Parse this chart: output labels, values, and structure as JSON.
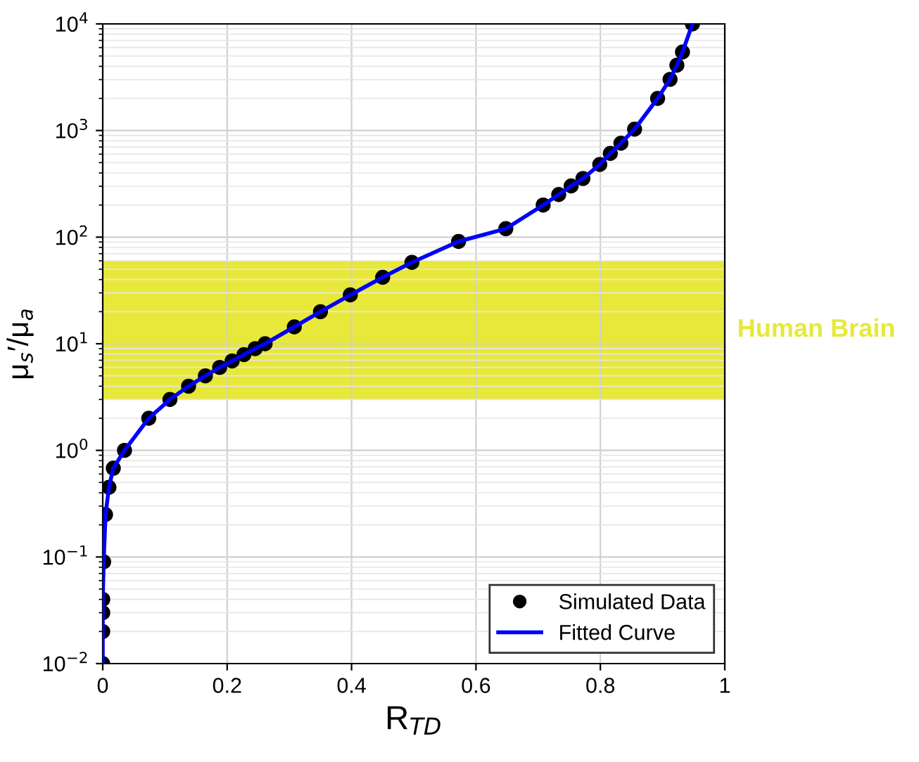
{
  "chart_data": {
    "type": "scatter",
    "xlabel": "R$_{TD}$",
    "ylabel": "μ$_{s}$′/μ$_{a}$",
    "log": "y",
    "grid": true,
    "legend": "bottom right",
    "xlim": [
      0,
      1
    ],
    "xticks": [
      0,
      0.2,
      0.4,
      0.6,
      0.8,
      1
    ],
    "ylim": [
      0.01,
      10000
    ],
    "yticks": [
      {
        "value": 0.01,
        "label": "10$^{−2}$"
      },
      {
        "value": 0.1,
        "label": "10$^{−1}$"
      },
      {
        "value": 1,
        "label": "10$^{0}$"
      },
      {
        "value": 10,
        "label": "10$^{1}$"
      },
      {
        "value": 100,
        "label": "10$^{2}$"
      },
      {
        "value": 1000,
        "label": "10$^{3}$"
      },
      {
        "value": 10000,
        "label": "10$^{4}$"
      }
    ],
    "bands": [
      {
        "axis": "y",
        "from": 3,
        "to": 60,
        "label": "Human Brain",
        "color": "#e8e83a"
      }
    ],
    "x": [
      0,
      0,
      0,
      0,
      0.0015,
      0.0045,
      0.01,
      0.017,
      0.035,
      0.074,
      0.108,
      0.138,
      0.165,
      0.188,
      0.208,
      0.227,
      0.245,
      0.261,
      0.308,
      0.35,
      0.398,
      0.45,
      0.497,
      0.572,
      0.648,
      0.708,
      0.733,
      0.753,
      0.772,
      0.799,
      0.816,
      0.833,
      0.855,
      0.892,
      0.912,
      0.923,
      0.932,
      0.948
    ],
    "series": [
      {
        "name": "Simulated Data",
        "marker": "circle",
        "color": "#000000",
        "values": [
          0.01,
          0.02,
          0.03,
          0.04,
          0.09,
          0.25,
          0.45,
          0.68,
          1.0,
          2.0,
          3.0,
          4.0,
          5.0,
          6.0,
          6.9,
          7.9,
          9.0,
          10,
          14.4,
          20,
          28.7,
          42,
          58,
          91,
          120,
          200,
          251,
          302,
          355,
          480,
          610,
          760,
          1030,
          2000,
          3020,
          4100,
          5450,
          10000
        ]
      },
      {
        "name": "Fitted Curve",
        "type": "line",
        "marker": "none",
        "line_style": "solid",
        "color": "#0000ff",
        "values": [
          0.01,
          0.02,
          0.03,
          0.04,
          0.09,
          0.25,
          0.45,
          0.68,
          1.0,
          2.0,
          3.0,
          4.0,
          5.0,
          6.0,
          6.9,
          7.9,
          9.0,
          10,
          14.4,
          20,
          28.7,
          42,
          58,
          91,
          120,
          200,
          251,
          302,
          355,
          480,
          610,
          760,
          1030,
          2000,
          3020,
          4100,
          5450,
          10000
        ]
      }
    ]
  }
}
